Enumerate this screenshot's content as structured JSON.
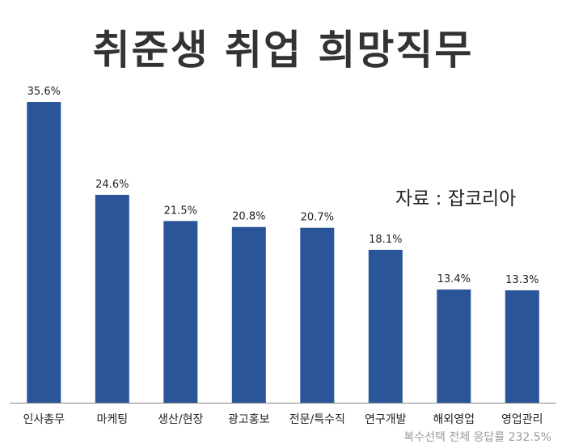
{
  "title": "취준생 취업 희망직무",
  "source": "자료 : 잡코리아",
  "footnote": "복수선택 전체 응답률 232.5%",
  "colors": {
    "bar": "#2b5599",
    "axis": "#888888",
    "title": "#333333"
  },
  "chart_data": {
    "type": "bar",
    "title": "취준생 취업 희망직무",
    "xlabel": "",
    "ylabel": "",
    "categories": [
      "인사총무",
      "마케팅",
      "생산/현장",
      "광고홍보",
      "전문/특수직",
      "연구개발",
      "해외영업",
      "영업관리"
    ],
    "values": [
      35.6,
      24.6,
      21.5,
      20.8,
      20.7,
      18.1,
      13.4,
      13.3
    ],
    "value_labels": [
      "35.6%",
      "24.6%",
      "21.5%",
      "20.8%",
      "20.7%",
      "18.1%",
      "13.4%",
      "13.3%"
    ],
    "ylim": [
      0,
      35.6
    ],
    "grid": false,
    "legend": "none"
  }
}
